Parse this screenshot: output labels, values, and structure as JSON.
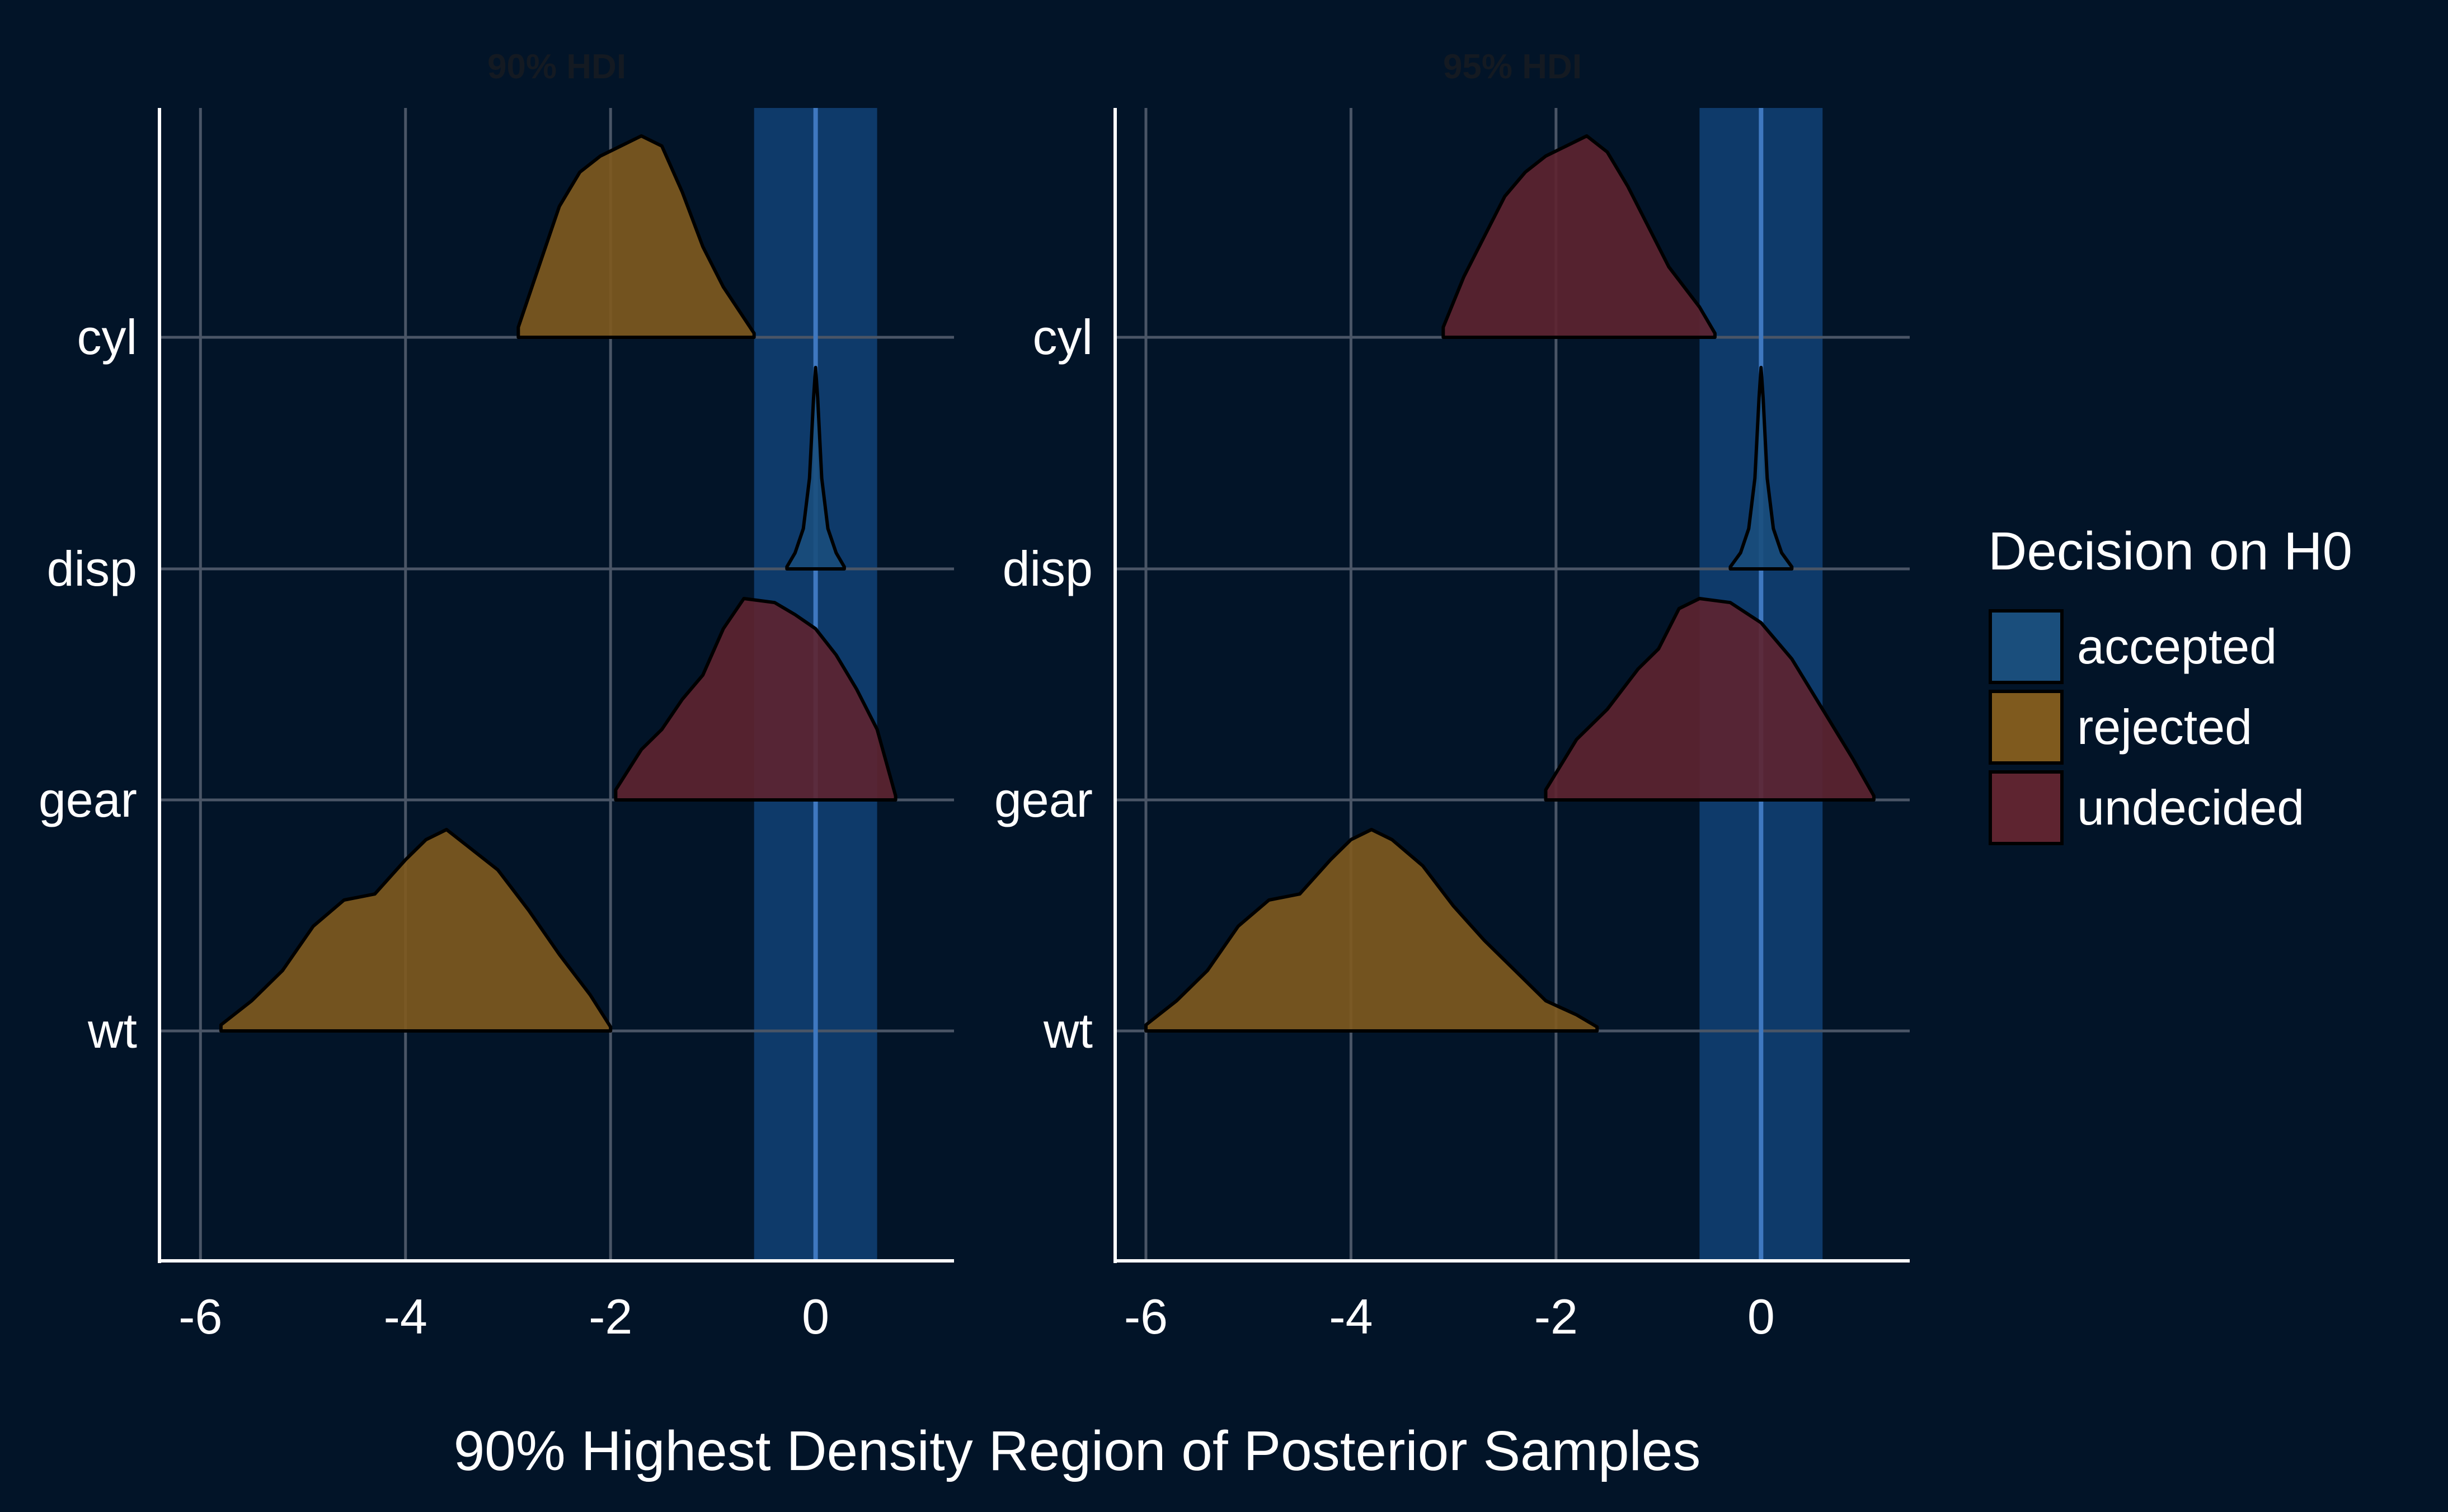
{
  "chart_data": {
    "type": "density-ridgeline",
    "title": "",
    "xlabel": "90% Highest Density Region of Posterior Samples",
    "ylabel": "",
    "categories": [
      "cyl",
      "disp",
      "gear",
      "wt"
    ],
    "legend": {
      "title": "Decision on H0",
      "placement": "right",
      "entries": [
        {
          "key": "accepted",
          "label": "accepted",
          "color": "#1a4e7c"
        },
        {
          "key": "rejected",
          "label": "rejected",
          "color": "#7f5a1e"
        },
        {
          "key": "undecided",
          "label": "undecided",
          "color": "#5e2430"
        }
      ]
    },
    "colors": {
      "background": "#021428",
      "grid": "#4a5566",
      "axis": "#ffffff",
      "rope": "#0e3a6a",
      "zero_line": "#3f78c0",
      "facet_title": "#141a22",
      "text": "#ffffff"
    },
    "panels": [
      {
        "title": "90% HDI",
        "xlim": [
          -6.4,
          1.35
        ],
        "xticks": [
          -6,
          -4,
          -2,
          0
        ],
        "xtick_labels": [
          "-6",
          "-4",
          "-2",
          "0"
        ],
        "rope": [
          -0.6,
          0.6
        ],
        "ridges": [
          {
            "term": "cyl",
            "decision": "rejected",
            "x": [
              -2.9,
              -2.7,
              -2.5,
              -2.3,
              -2.1,
              -1.9,
              -1.7,
              -1.5,
              -1.3,
              -1.1,
              -0.9,
              -0.6
            ],
            "density": [
              0.05,
              0.35,
              0.65,
              0.82,
              0.9,
              0.95,
              1.0,
              0.95,
              0.72,
              0.45,
              0.25,
              0.02
            ]
          },
          {
            "term": "disp",
            "decision": "accepted",
            "x": [
              -0.28,
              -0.2,
              -0.12,
              -0.06,
              -0.02,
              0.0,
              0.02,
              0.06,
              0.12,
              0.2,
              0.28
            ],
            "density": [
              0.01,
              0.08,
              0.2,
              0.45,
              0.85,
              1.0,
              0.85,
              0.45,
              0.2,
              0.08,
              0.01
            ]
          },
          {
            "term": "gear",
            "decision": "undecided",
            "x": [
              -1.95,
              -1.7,
              -1.5,
              -1.3,
              -1.1,
              -0.9,
              -0.7,
              -0.4,
              -0.2,
              0.0,
              0.2,
              0.4,
              0.6,
              0.78
            ],
            "density": [
              0.05,
              0.25,
              0.35,
              0.5,
              0.62,
              0.85,
              1.0,
              0.98,
              0.92,
              0.85,
              0.72,
              0.55,
              0.35,
              0.02
            ]
          },
          {
            "term": "wt",
            "decision": "rejected",
            "x": [
              -5.8,
              -5.5,
              -5.2,
              -4.9,
              -4.6,
              -4.3,
              -4.0,
              -3.8,
              -3.6,
              -3.4,
              -3.1,
              -2.8,
              -2.5,
              -2.2,
              -2.0
            ],
            "density": [
              0.03,
              0.15,
              0.3,
              0.52,
              0.65,
              0.68,
              0.85,
              0.95,
              1.0,
              0.92,
              0.8,
              0.6,
              0.38,
              0.18,
              0.02
            ]
          }
        ]
      },
      {
        "title": "95% HDI",
        "xlim": [
          -6.3,
          1.45
        ],
        "xticks": [
          -6,
          -4,
          -2,
          0
        ],
        "xtick_labels": [
          "-6",
          "-4",
          "-2",
          "0"
        ],
        "rope": [
          -0.6,
          0.6
        ],
        "ridges": [
          {
            "term": "cyl",
            "decision": "undecided",
            "x": [
              -3.1,
              -2.9,
              -2.7,
              -2.5,
              -2.3,
              -2.1,
              -1.9,
              -1.7,
              -1.5,
              -1.3,
              -1.1,
              -0.9,
              -0.6,
              -0.45
            ],
            "density": [
              0.05,
              0.3,
              0.5,
              0.7,
              0.82,
              0.9,
              0.95,
              1.0,
              0.92,
              0.75,
              0.55,
              0.35,
              0.15,
              0.02
            ]
          },
          {
            "term": "disp",
            "decision": "accepted",
            "x": [
              -0.3,
              -0.2,
              -0.12,
              -0.06,
              -0.02,
              0.0,
              0.02,
              0.06,
              0.12,
              0.2,
              0.3
            ],
            "density": [
              0.01,
              0.08,
              0.2,
              0.45,
              0.85,
              1.0,
              0.85,
              0.45,
              0.2,
              0.08,
              0.01
            ]
          },
          {
            "term": "gear",
            "decision": "undecided",
            "x": [
              -2.1,
              -1.8,
              -1.5,
              -1.2,
              -1.0,
              -0.8,
              -0.6,
              -0.3,
              0.0,
              0.3,
              0.6,
              0.9,
              1.1
            ],
            "density": [
              0.05,
              0.3,
              0.45,
              0.65,
              0.75,
              0.95,
              1.0,
              0.98,
              0.88,
              0.7,
              0.45,
              0.2,
              0.02
            ]
          },
          {
            "term": "wt",
            "decision": "rejected",
            "x": [
              -6.0,
              -5.7,
              -5.4,
              -5.1,
              -4.8,
              -4.5,
              -4.2,
              -4.0,
              -3.8,
              -3.6,
              -3.3,
              -3.0,
              -2.7,
              -2.4,
              -2.1,
              -1.8,
              -1.6
            ],
            "density": [
              0.03,
              0.15,
              0.3,
              0.52,
              0.65,
              0.68,
              0.85,
              0.95,
              1.0,
              0.95,
              0.82,
              0.62,
              0.45,
              0.3,
              0.15,
              0.08,
              0.02
            ]
          }
        ]
      }
    ]
  }
}
